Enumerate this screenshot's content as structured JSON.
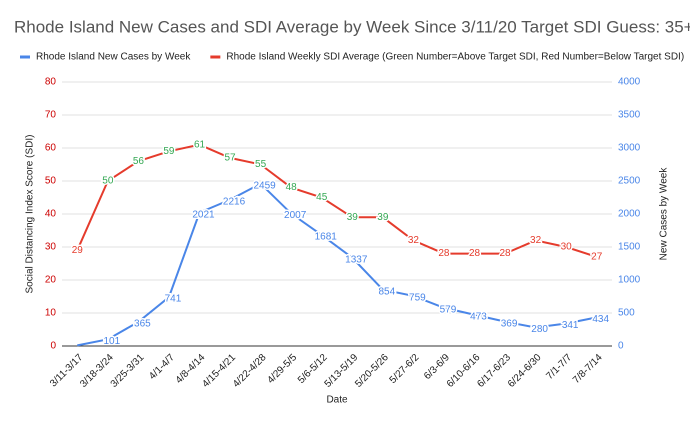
{
  "chart_data": {
    "type": "line",
    "title": "Rhode Island New Cases and SDI Average by Week Since 3/11/20 Target SDI Guess: 35+",
    "x_label": "Date",
    "y_label": "Social Distancing Index Score (SDI)",
    "y2_label": "New Cases by Week",
    "categories": [
      "3/11-3/17",
      "3/18-3/24",
      "3/25-3/31",
      "4/1-4/7",
      "4/8-4/14",
      "4/15-4/21",
      "4/22-4/28",
      "4/29-5/5",
      "5/6-5/12",
      "5/13-5/19",
      "5/20-5/26",
      "5/27-6/2",
      "6/3-6/9",
      "6/10-6/16",
      "6/17-6/23",
      "6/24-6/30",
      "7/1-7/7",
      "7/8-7/14"
    ],
    "series": [
      {
        "name": "Rhode Island New Cases by Week",
        "color": "#4a86e8",
        "axis": "y2",
        "values": [
          10,
          101,
          365,
          741,
          2021,
          2216,
          2459,
          2007,
          1681,
          1337,
          854,
          759,
          579,
          473,
          369,
          280,
          341,
          434
        ],
        "value_labels": [
          null,
          "101",
          "365",
          "741",
          "2021",
          "2216",
          "2459",
          "2007",
          "1681",
          "1337",
          "854",
          "759",
          "579",
          "473",
          "369",
          "280",
          "341",
          "434"
        ]
      },
      {
        "name": "Rhode Island Weekly SDI Average (Green Number=Above Target SDI, Red Number=Below Target SDI)",
        "color": "#e53b2c",
        "axis": "y",
        "values": [
          29,
          50,
          56,
          59,
          61,
          57,
          55,
          48,
          45,
          39,
          39,
          32,
          28,
          28,
          28,
          32,
          30,
          27
        ]
      }
    ],
    "label_threshold": 35,
    "label_color_above": "#34a853",
    "label_color_below": "#e53b2c",
    "ylim": [
      0,
      80
    ],
    "yticks": [
      0,
      10,
      20,
      30,
      40,
      50,
      60,
      70,
      80
    ],
    "y_tick_color": "#cc0000",
    "y2lim": [
      0,
      4000
    ],
    "y2ticks": [
      0,
      500,
      1000,
      1500,
      2000,
      2500,
      3000,
      3500,
      4000
    ],
    "y2_tick_color": "#4a86e8",
    "grid": true
  }
}
